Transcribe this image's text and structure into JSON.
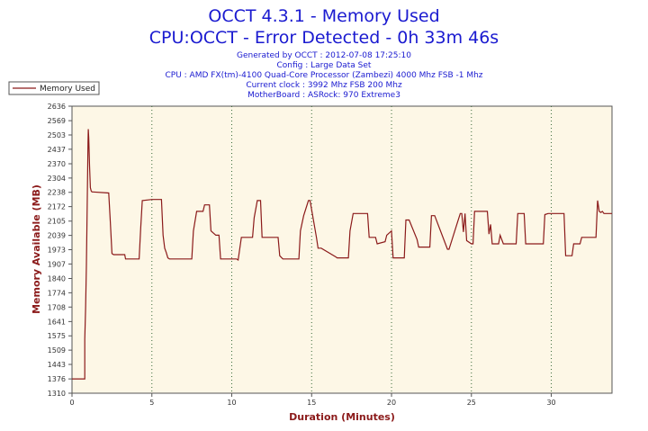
{
  "header": {
    "title": "OCCT 4.3.1 - Memory Used",
    "subtitle": "CPU:OCCT - Error Detected - 0h 33m 46s",
    "info_lines": [
      "Generated by OCCT : 2012-07-08 17:25:10",
      "Config : Large Data Set",
      "CPU : AMD FX(tm)-4100 Quad-Core Processor (Zambezi) 4000 Mhz FSB -1 Mhz",
      "Current clock : 3992 Mhz FSB 200 Mhz",
      "MotherBoard : ASRock: 970 Extreme3"
    ]
  },
  "colors": {
    "line": "#8b1a1a",
    "plot_bg": "#fdf7e6",
    "title": "#1a1ad0",
    "axis_title": "#8b1a1a",
    "grid": "#3a6a3a"
  },
  "chart_data": {
    "type": "line",
    "xlabel": "Duration (Minutes)",
    "ylabel": "Memory Available (MB)",
    "xlim": [
      0,
      33.8
    ],
    "ylim": [
      1310,
      2636
    ],
    "xticks": [
      0,
      5,
      10,
      15,
      20,
      25,
      30
    ],
    "yticks": [
      1310,
      1376,
      1443,
      1509,
      1575,
      1641,
      1708,
      1774,
      1840,
      1907,
      1973,
      2039,
      2105,
      2172,
      2238,
      2304,
      2370,
      2437,
      2503,
      2569,
      2636
    ],
    "grid": "vertical dotted at x ticks",
    "legend": "top-left",
    "series": [
      {
        "name": "Memory Used",
        "x": [
          0,
          0.8,
          0.8,
          0.85,
          0.9,
          0.95,
          1.0,
          1.02,
          1.05,
          1.1,
          1.15,
          1.2,
          1.25,
          1.3,
          2.3,
          2.4,
          2.5,
          2.6,
          3.3,
          3.35,
          4.2,
          4.3,
          4.4,
          5.0,
          5.6,
          5.7,
          5.8,
          5.9,
          6.0,
          6.1,
          7.5,
          7.6,
          7.8,
          8.2,
          8.3,
          8.6,
          8.7,
          9.0,
          9.2,
          9.3,
          10.3,
          10.4,
          10.6,
          11.3,
          11.4,
          11.6,
          11.8,
          11.9,
          12.9,
          13.0,
          13.2,
          14.2,
          14.3,
          14.5,
          14.8,
          14.9,
          15.3,
          15.4,
          15.6,
          16.5,
          16.6,
          17.3,
          17.4,
          17.6,
          18.5,
          18.6,
          19.0,
          19.1,
          19.6,
          19.7,
          20.0,
          20.1,
          20.8,
          20.9,
          21.1,
          21.6,
          21.7,
          22.4,
          22.5,
          22.7,
          23.5,
          23.6,
          24.3,
          24.4,
          24.5,
          24.6,
          24.7,
          25.0,
          25.1,
          25.2,
          26.0,
          26.1,
          26.2,
          26.3,
          26.7,
          26.8,
          27.0,
          27.8,
          27.9,
          28.3,
          28.4,
          29.5,
          29.6,
          29.8,
          30.8,
          30.9,
          31.3,
          31.4,
          31.8,
          31.9,
          32.1,
          32.8,
          32.9,
          33.0,
          33.1,
          33.2,
          33.3,
          33.8
        ],
        "y": [
          1376,
          1376,
          1560,
          1700,
          1900,
          2180,
          2470,
          2530,
          2490,
          2360,
          2260,
          2245,
          2240,
          2240,
          2235,
          2100,
          1955,
          1950,
          1950,
          1930,
          1930,
          2070,
          2200,
          2205,
          2205,
          2040,
          1980,
          1960,
          1935,
          1930,
          1930,
          2060,
          2150,
          2150,
          2180,
          2180,
          2060,
          2040,
          2040,
          1930,
          1930,
          1925,
          2030,
          2030,
          2120,
          2200,
          2200,
          2030,
          2030,
          1945,
          1930,
          1930,
          2060,
          2130,
          2200,
          2200,
          2030,
          1980,
          1980,
          1940,
          1935,
          1935,
          2060,
          2140,
          2140,
          2030,
          2030,
          2000,
          2010,
          2040,
          2060,
          1935,
          1935,
          2110,
          2110,
          2020,
          1985,
          1985,
          2130,
          2130,
          1975,
          1975,
          2140,
          2140,
          2055,
          2140,
          2015,
          2000,
          2000,
          2150,
          2150,
          2045,
          2090,
          2000,
          2000,
          2040,
          2000,
          2000,
          2140,
          2140,
          2000,
          2000,
          2135,
          2140,
          2140,
          1945,
          1945,
          2000,
          2000,
          2030,
          2030,
          2030,
          2200,
          2150,
          2145,
          2150,
          2140,
          2140
        ]
      }
    ]
  }
}
